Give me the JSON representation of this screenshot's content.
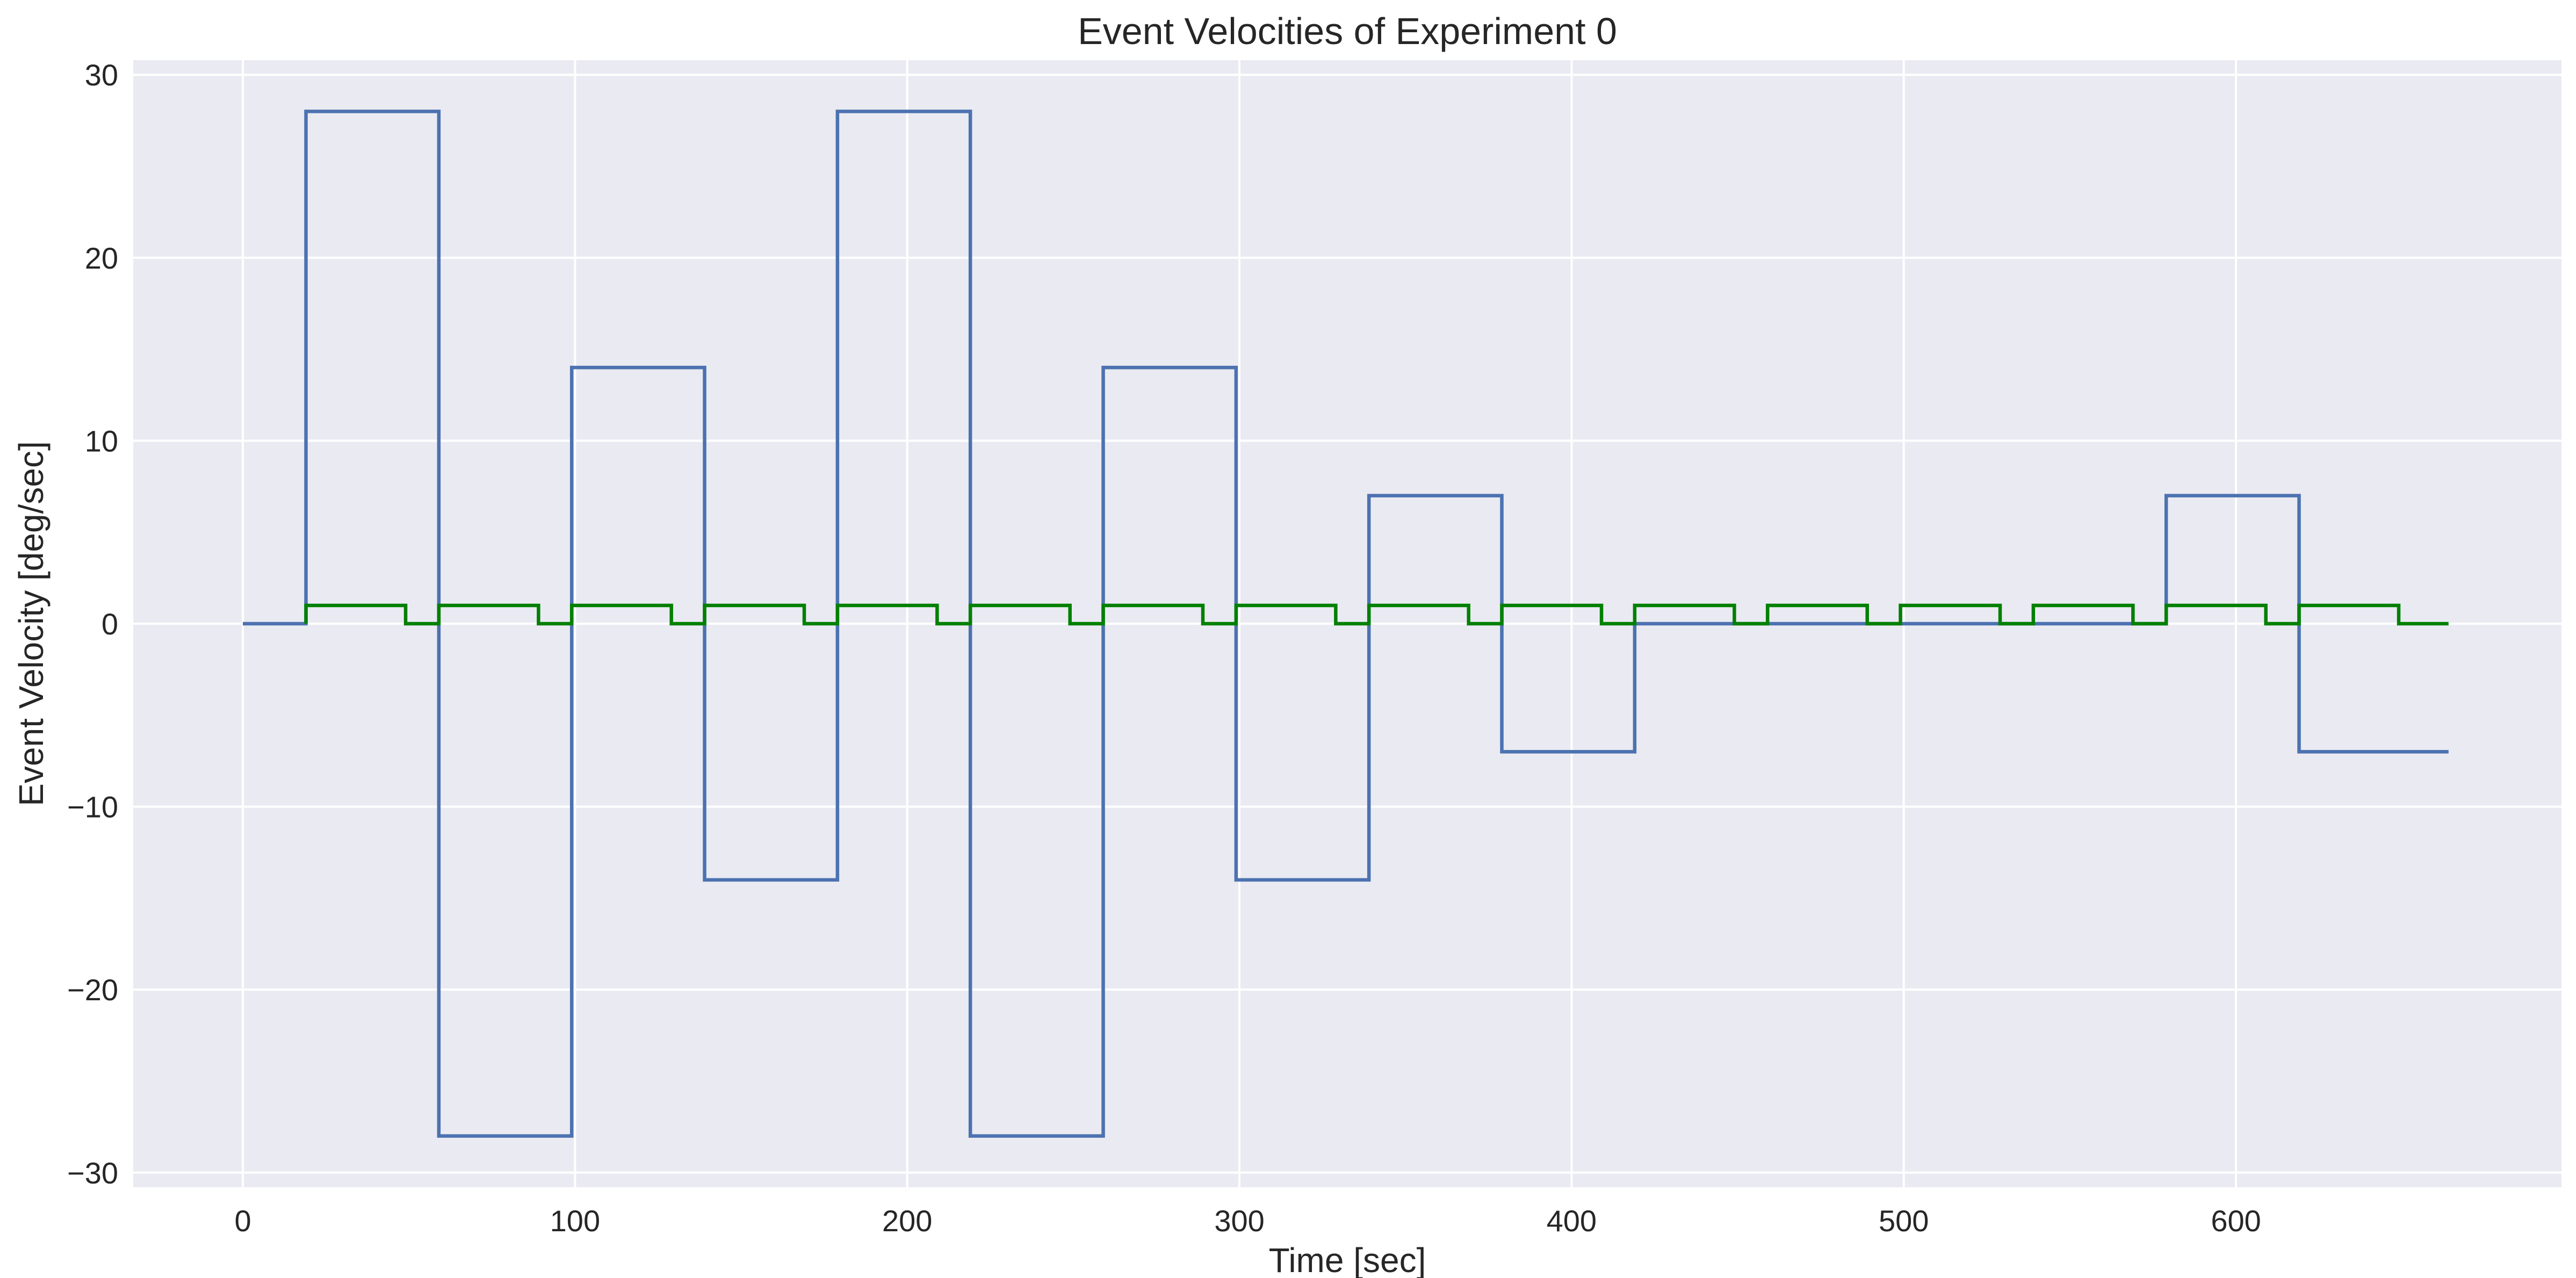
{
  "chart_data": {
    "type": "line",
    "title": "Event Velocities of Experiment 0",
    "xlabel": "Time [sec]",
    "ylabel": "Event Velocity [deg/sec]",
    "xlim": [
      -33,
      698
    ],
    "ylim": [
      -30.8,
      30.8
    ],
    "xticks": [
      0,
      100,
      200,
      300,
      400,
      500,
      600
    ],
    "yticks": [
      -30,
      -20,
      -10,
      0,
      10,
      20,
      30
    ],
    "xtick_labels": [
      "0",
      "100",
      "200",
      "300",
      "400",
      "500",
      "600"
    ],
    "ytick_labels": [
      "−30",
      "−20",
      "−10",
      "0",
      "10",
      "20",
      "30"
    ],
    "grid": true,
    "legend": "none",
    "step": "post",
    "background_color": "#EAEAF2",
    "series": [
      {
        "color": "#4C72B0",
        "points": [
          [
            0,
            0
          ],
          [
            19,
            0
          ],
          [
            19,
            28
          ],
          [
            59,
            28
          ],
          [
            59,
            -28
          ],
          [
            99,
            -28
          ],
          [
            99,
            14
          ],
          [
            139,
            14
          ],
          [
            139,
            -14
          ],
          [
            179,
            -14
          ],
          [
            179,
            28
          ],
          [
            219,
            28
          ],
          [
            219,
            -28
          ],
          [
            259,
            -28
          ],
          [
            259,
            14
          ],
          [
            299,
            14
          ],
          [
            299,
            -14
          ],
          [
            339,
            -14
          ],
          [
            339,
            7
          ],
          [
            379,
            7
          ],
          [
            379,
            -7
          ],
          [
            419,
            -7
          ],
          [
            419,
            0
          ],
          [
            579,
            0
          ],
          [
            579,
            7
          ],
          [
            619,
            7
          ],
          [
            619,
            -7
          ],
          [
            664,
            -7
          ]
        ]
      },
      {
        "color": "#008000",
        "points": [
          [
            19,
            0
          ],
          [
            19,
            1
          ],
          [
            49,
            1
          ],
          [
            49,
            0
          ],
          [
            59,
            0
          ],
          [
            59,
            1
          ],
          [
            89,
            1
          ],
          [
            89,
            0
          ],
          [
            99,
            0
          ],
          [
            99,
            1
          ],
          [
            129,
            1
          ],
          [
            129,
            0
          ],
          [
            139,
            0
          ],
          [
            139,
            1
          ],
          [
            169,
            1
          ],
          [
            169,
            0
          ],
          [
            179,
            0
          ],
          [
            179,
            1
          ],
          [
            209,
            1
          ],
          [
            209,
            0
          ],
          [
            219,
            0
          ],
          [
            219,
            1
          ],
          [
            249,
            1
          ],
          [
            249,
            0
          ],
          [
            259,
            0
          ],
          [
            259,
            1
          ],
          [
            289,
            1
          ],
          [
            289,
            0
          ],
          [
            299,
            0
          ],
          [
            299,
            1
          ],
          [
            329,
            1
          ],
          [
            329,
            0
          ],
          [
            339,
            0
          ],
          [
            339,
            1
          ],
          [
            369,
            1
          ],
          [
            369,
            0
          ],
          [
            379,
            0
          ],
          [
            379,
            1
          ],
          [
            409,
            1
          ],
          [
            409,
            0
          ],
          [
            419,
            0
          ],
          [
            419,
            1
          ],
          [
            449,
            1
          ],
          [
            449,
            0
          ],
          [
            459,
            0
          ],
          [
            459,
            1
          ],
          [
            489,
            1
          ],
          [
            489,
            0
          ],
          [
            499,
            0
          ],
          [
            499,
            1
          ],
          [
            529,
            1
          ],
          [
            529,
            0
          ],
          [
            539,
            0
          ],
          [
            539,
            1
          ],
          [
            569,
            1
          ],
          [
            569,
            0
          ],
          [
            579,
            0
          ],
          [
            579,
            1
          ],
          [
            609,
            1
          ],
          [
            609,
            0
          ],
          [
            619,
            0
          ],
          [
            619,
            1
          ],
          [
            649,
            1
          ],
          [
            649,
            0
          ],
          [
            664,
            0
          ]
        ]
      }
    ]
  }
}
